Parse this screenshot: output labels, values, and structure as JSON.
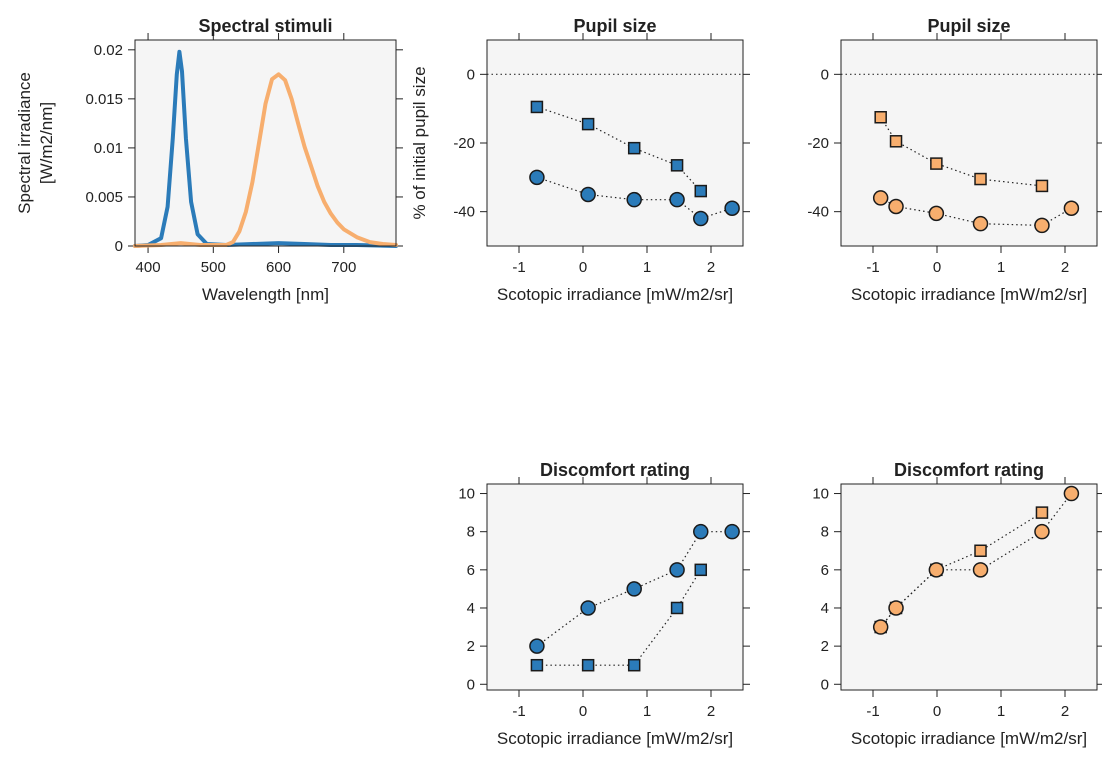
{
  "colors": {
    "blue": "#2b7bb9",
    "orange": "#f7ae6e",
    "panel_bg": "#f5f5f5",
    "marker_edge": "#1a1a1a"
  },
  "chart_data": [
    {
      "id": "spectral",
      "type": "line",
      "title": "Spectral stimuli",
      "xlabel": "Wavelength [nm]",
      "ylabel_lines": [
        "Spectral irradiance",
        "[W/m2/nm]"
      ],
      "xlim": [
        380,
        780
      ],
      "ylim": [
        0,
        0.021
      ],
      "xticks": [
        400,
        500,
        600,
        700
      ],
      "xtick_labels": [
        "400",
        "500",
        "600",
        "700"
      ],
      "yticks": [
        0,
        0.005,
        0.01,
        0.015,
        0.02
      ],
      "ytick_labels": [
        "0",
        "0.005",
        "0.01",
        "0.015",
        "0.02"
      ],
      "series": [
        {
          "color": "blue",
          "x": [
            380,
            400,
            420,
            430,
            438,
            444,
            448,
            452,
            458,
            466,
            476,
            490,
            520,
            560,
            600,
            640,
            680,
            720,
            780
          ],
          "y": [
            0,
            0.0001,
            0.0008,
            0.004,
            0.011,
            0.0175,
            0.0198,
            0.0178,
            0.011,
            0.0045,
            0.0012,
            0.0002,
            0.0001,
            0.0002,
            0.0003,
            0.0002,
            0.0001,
            0.0001,
            0
          ]
        },
        {
          "color": "orange",
          "x": [
            380,
            420,
            450,
            480,
            520,
            530,
            540,
            550,
            560,
            570,
            580,
            590,
            600,
            610,
            620,
            630,
            640,
            650,
            660,
            670,
            680,
            690,
            700,
            720,
            740,
            760,
            780
          ],
          "y": [
            0,
            0.0001,
            0.0003,
            0.0001,
            0.0001,
            0.0004,
            0.0015,
            0.0035,
            0.0065,
            0.0105,
            0.0145,
            0.017,
            0.0175,
            0.0169,
            0.015,
            0.0125,
            0.0101,
            0.0081,
            0.0061,
            0.0045,
            0.0033,
            0.0024,
            0.0017,
            0.0009,
            0.0004,
            0.0002,
            0.0001
          ]
        }
      ]
    },
    {
      "id": "pupil-blue",
      "type": "scatter",
      "title": "Pupil size",
      "xlabel": "Scotopic irradiance [mW/m2/sr]",
      "ylabel": "% of initial pupil size",
      "xlim": [
        -1.5,
        2.5
      ],
      "ylim": [
        -50,
        10
      ],
      "xticks": [
        -1,
        0,
        1,
        2
      ],
      "xtick_labels": [
        "-1",
        "0",
        "1",
        "2"
      ],
      "yticks": [
        0,
        -20,
        -40
      ],
      "ytick_labels": [
        "0",
        "-20",
        "-40"
      ],
      "reference_line": 0,
      "series": [
        {
          "marker": "square",
          "color": "blue",
          "x": [
            -0.72,
            0.08,
            0.8,
            1.47,
            1.84
          ],
          "y": [
            -9.5,
            -14.5,
            -21.5,
            -26.5,
            -34
          ]
        },
        {
          "marker": "circle",
          "color": "blue",
          "x": [
            -0.72,
            0.08,
            0.8,
            1.47,
            1.84,
            2.33
          ],
          "y": [
            -30,
            -35,
            -36.5,
            -36.5,
            -42,
            -39
          ]
        }
      ]
    },
    {
      "id": "pupil-orange",
      "type": "scatter",
      "title": "Pupil size",
      "xlabel": "Scotopic irradiance [mW/m2/sr]",
      "ylabel": "",
      "xlim": [
        -1.5,
        2.5
      ],
      "ylim": [
        -50,
        10
      ],
      "xticks": [
        -1,
        0,
        1,
        2
      ],
      "xtick_labels": [
        "-1",
        "0",
        "1",
        "2"
      ],
      "yticks": [
        0,
        -20,
        -40
      ],
      "ytick_labels": [
        "0",
        "-20",
        "-40"
      ],
      "reference_line": 0,
      "series": [
        {
          "marker": "square",
          "color": "orange",
          "x": [
            -0.88,
            -0.64,
            -0.01,
            0.68,
            1.64
          ],
          "y": [
            -12.5,
            -19.5,
            -26,
            -30.5,
            -32.5
          ]
        },
        {
          "marker": "circle",
          "color": "orange",
          "x": [
            -0.88,
            -0.64,
            -0.01,
            0.68,
            1.64,
            2.1
          ],
          "y": [
            -36,
            -38.5,
            -40.5,
            -43.5,
            -44,
            -39
          ]
        }
      ]
    },
    {
      "id": "discomfort-blue",
      "type": "scatter",
      "title": "Discomfort rating",
      "xlabel": "Scotopic irradiance [mW/m2/sr]",
      "ylabel": "",
      "xlim": [
        -1.5,
        2.5
      ],
      "ylim": [
        -0.3,
        10.5
      ],
      "xticks": [
        -1,
        0,
        1,
        2
      ],
      "xtick_labels": [
        "-1",
        "0",
        "1",
        "2"
      ],
      "yticks": [
        0,
        2,
        4,
        6,
        8,
        10
      ],
      "ytick_labels": [
        "0",
        "2",
        "4",
        "6",
        "8",
        "10"
      ],
      "series": [
        {
          "marker": "square",
          "color": "blue",
          "x": [
            -0.72,
            0.08,
            0.8,
            1.47,
            1.84
          ],
          "y": [
            1,
            1,
            1,
            4,
            6
          ]
        },
        {
          "marker": "circle",
          "color": "blue",
          "x": [
            -0.72,
            0.08,
            0.8,
            1.47,
            1.84,
            2.33
          ],
          "y": [
            2,
            4,
            5,
            6,
            8,
            8
          ]
        }
      ]
    },
    {
      "id": "discomfort-orange",
      "type": "scatter",
      "title": "Discomfort rating",
      "xlabel": "Scotopic irradiance [mW/m2/sr]",
      "ylabel": "",
      "xlim": [
        -1.5,
        2.5
      ],
      "ylim": [
        -0.3,
        10.5
      ],
      "xticks": [
        -1,
        0,
        1,
        2
      ],
      "xtick_labels": [
        "-1",
        "0",
        "1",
        "2"
      ],
      "yticks": [
        0,
        2,
        4,
        6,
        8,
        10
      ],
      "ytick_labels": [
        "0",
        "2",
        "4",
        "6",
        "8",
        "10"
      ],
      "series": [
        {
          "marker": "square",
          "color": "orange",
          "x": [
            -0.88,
            -0.64,
            -0.01,
            0.68,
            1.64
          ],
          "y": [
            3,
            4,
            6,
            7,
            9
          ]
        },
        {
          "marker": "circle",
          "color": "orange",
          "x": [
            -0.88,
            -0.64,
            -0.01,
            0.68,
            1.64,
            2.1
          ],
          "y": [
            3,
            4,
            6,
            6,
            8,
            10
          ]
        }
      ]
    }
  ]
}
